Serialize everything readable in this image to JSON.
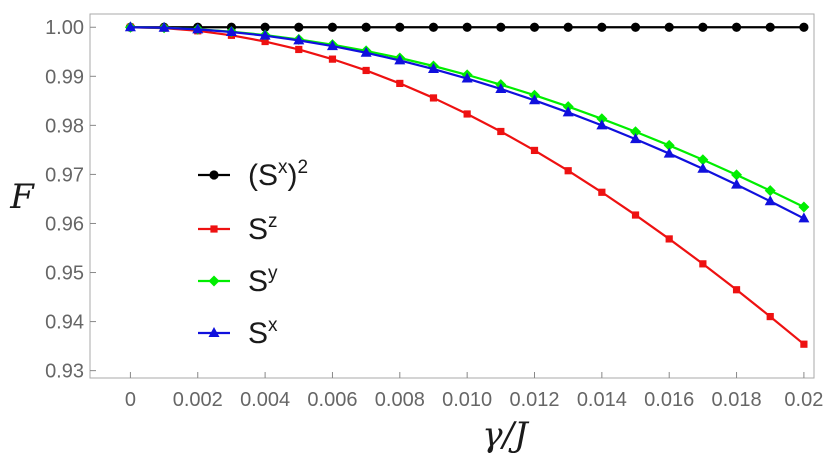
{
  "chart_data": {
    "type": "line",
    "title": "",
    "xlabel": "γ/J",
    "ylabel": "F",
    "xlim": [
      -0.0012,
      0.0203
    ],
    "ylim": [
      0.9285,
      1.0027
    ],
    "grid": false,
    "legend_position": "center-left",
    "x": [
      0,
      0.001,
      0.002,
      0.003,
      0.004,
      0.005,
      0.006,
      0.007,
      0.008,
      0.009,
      0.01,
      0.011,
      0.012,
      0.013,
      0.014,
      0.015,
      0.016,
      0.017,
      0.018,
      0.019,
      0.02
    ],
    "x_ticks": [
      0,
      0.002,
      0.004,
      0.006,
      0.008,
      0.01,
      0.012,
      0.014,
      0.016,
      0.018,
      0.02
    ],
    "x_tick_labels": [
      "0",
      "0.002",
      "0.004",
      "0.006",
      "0.008",
      "0.010",
      "0.012",
      "0.014",
      "0.016",
      "0.018",
      "0.02"
    ],
    "y_ticks": [
      0.93,
      0.94,
      0.95,
      0.96,
      0.97,
      0.98,
      0.99,
      1.0
    ],
    "y_tick_labels": [
      "0.93",
      "0.94",
      "0.95",
      "0.96",
      "0.97",
      "0.98",
      "0.99",
      "1.00"
    ],
    "series": [
      {
        "name": "(S^x)^2",
        "label_base": "(S",
        "label_sup1": "x",
        "label_mid": ")",
        "label_sup2": "2",
        "color": "#000000",
        "marker": "circle",
        "values": [
          1.0,
          1.0,
          1.0,
          1.0,
          1.0,
          1.0,
          1.0,
          1.0,
          1.0,
          1.0,
          1.0,
          1.0,
          1.0,
          1.0,
          1.0,
          1.0,
          1.0,
          1.0,
          1.0,
          1.0,
          1.0
        ]
      },
      {
        "name": "S^z",
        "label_base": "S",
        "label_sup1": "z",
        "color": "#ee1111",
        "marker": "square",
        "values": [
          1.0,
          0.99982,
          0.99927,
          0.99836,
          0.99709,
          0.99547,
          0.9935,
          0.99119,
          0.98855,
          0.98559,
          0.98232,
          0.97875,
          0.97489,
          0.97075,
          0.96636,
          0.96172,
          0.95685,
          0.95177,
          0.94649,
          0.94102,
          0.93539
        ]
      },
      {
        "name": "S^y",
        "label_base": "S",
        "label_sup1": "y",
        "color": "#00ee00",
        "marker": "diamond",
        "values": [
          1.0,
          0.9999,
          0.9996,
          0.9991,
          0.99841,
          0.99752,
          0.99645,
          0.99518,
          0.99373,
          0.9921,
          0.99029,
          0.9883,
          0.98615,
          0.98383,
          0.98134,
          0.9787,
          0.97591,
          0.97298,
          0.9699,
          0.96669,
          0.96335
        ]
      },
      {
        "name": "S^x",
        "label_base": "S",
        "label_sup1": "x",
        "color": "#1010dd",
        "marker": "triangle",
        "values": [
          1.0,
          0.99989,
          0.99957,
          0.99903,
          0.99828,
          0.99732,
          0.99616,
          0.9948,
          0.99324,
          0.99148,
          0.98954,
          0.98742,
          0.98511,
          0.98264,
          0.98,
          0.9772,
          0.97425,
          0.97115,
          0.96791,
          0.96453,
          0.96103
        ]
      }
    ]
  }
}
